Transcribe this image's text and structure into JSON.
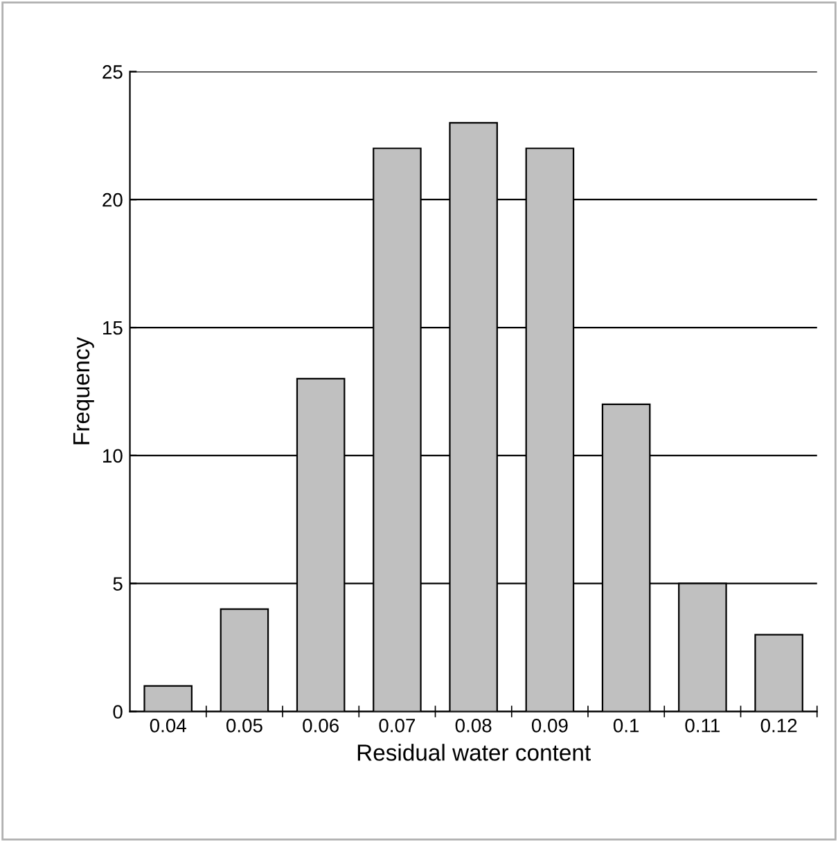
{
  "chart_data": {
    "type": "bar",
    "xlabel": "Residual water content",
    "ylabel": "Frequency",
    "categories": [
      "0.04",
      "0.05",
      "0.06",
      "0.07",
      "0.08",
      "0.09",
      "0.1",
      "0.11",
      "0.12"
    ],
    "values": [
      1,
      4,
      13,
      22,
      23,
      22,
      12,
      5,
      3
    ],
    "color": "#c0c0c0",
    "ylim": [
      0,
      25
    ],
    "yticks": [
      0,
      5,
      10,
      15,
      20,
      25
    ],
    "grid": "y",
    "legend": false
  }
}
